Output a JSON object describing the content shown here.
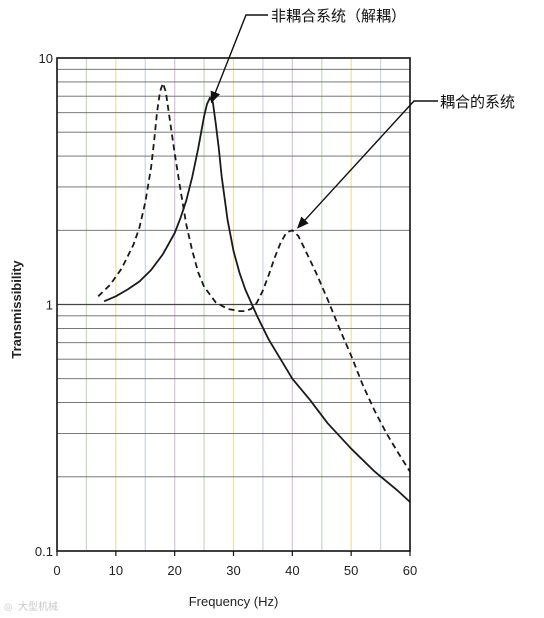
{
  "chart_data": {
    "type": "line",
    "xlabel": "Frequency (Hz)",
    "ylabel": "Transmissibility",
    "xlim": [
      0,
      60
    ],
    "ylim": [
      0.1,
      10
    ],
    "yscale": "log",
    "x_ticks": [
      "0",
      "10",
      "20",
      "30",
      "40",
      "50",
      "60"
    ],
    "y_ticks": [
      {
        "value": 0.1,
        "label": "0.1"
      },
      {
        "value": 1,
        "label": "1"
      },
      {
        "value": 10,
        "label": "10"
      }
    ],
    "grid": true,
    "series": [
      {
        "name": "非耦合系统（解耦）",
        "style": "solid",
        "color": "#1a1a1a",
        "points": [
          [
            8,
            1.03
          ],
          [
            10,
            1.08
          ],
          [
            12,
            1.15
          ],
          [
            14,
            1.24
          ],
          [
            16,
            1.38
          ],
          [
            18,
            1.6
          ],
          [
            20,
            1.95
          ],
          [
            21,
            2.25
          ],
          [
            22,
            2.65
          ],
          [
            23,
            3.3
          ],
          [
            24,
            4.3
          ],
          [
            25,
            5.8
          ],
          [
            25.5,
            6.5
          ],
          [
            26,
            6.9
          ],
          [
            26.5,
            6.6
          ],
          [
            27,
            5.4
          ],
          [
            27.5,
            4.3
          ],
          [
            28,
            3.3
          ],
          [
            29,
            2.2
          ],
          [
            30,
            1.65
          ],
          [
            31,
            1.35
          ],
          [
            32,
            1.15
          ],
          [
            34,
            0.9
          ],
          [
            36,
            0.72
          ],
          [
            38,
            0.6
          ],
          [
            40,
            0.5
          ],
          [
            43,
            0.41
          ],
          [
            46,
            0.33
          ],
          [
            50,
            0.26
          ],
          [
            54,
            0.21
          ],
          [
            58,
            0.175
          ],
          [
            60,
            0.158
          ]
        ]
      },
      {
        "name": "耦合的系统",
        "style": "dashed",
        "color": "#1a1a1a",
        "points": [
          [
            7,
            1.08
          ],
          [
            9,
            1.2
          ],
          [
            11,
            1.4
          ],
          [
            13,
            1.75
          ],
          [
            14,
            2.05
          ],
          [
            15,
            2.6
          ],
          [
            16,
            3.6
          ],
          [
            16.5,
            4.6
          ],
          [
            17,
            6.0
          ],
          [
            17.5,
            7.3
          ],
          [
            18,
            7.9
          ],
          [
            18.5,
            7.3
          ],
          [
            19,
            6.0
          ],
          [
            20,
            4.1
          ],
          [
            21,
            2.9
          ],
          [
            22,
            2.1
          ],
          [
            23,
            1.65
          ],
          [
            24,
            1.35
          ],
          [
            25,
            1.18
          ],
          [
            27,
            1.02
          ],
          [
            29,
            0.96
          ],
          [
            31,
            0.94
          ],
          [
            32,
            0.94
          ],
          [
            33,
            0.96
          ],
          [
            34,
            1.02
          ],
          [
            35,
            1.14
          ],
          [
            36,
            1.32
          ],
          [
            37,
            1.55
          ],
          [
            38,
            1.78
          ],
          [
            39,
            1.96
          ],
          [
            40,
            2.0
          ],
          [
            41,
            1.9
          ],
          [
            42,
            1.7
          ],
          [
            44,
            1.35
          ],
          [
            46,
            1.05
          ],
          [
            48,
            0.8
          ],
          [
            50,
            0.62
          ],
          [
            52,
            0.47
          ],
          [
            54,
            0.37
          ],
          [
            56,
            0.3
          ],
          [
            58,
            0.25
          ],
          [
            60,
            0.21
          ]
        ]
      }
    ],
    "annotations": [
      {
        "text": "非耦合系统（解耦）",
        "points_to": [
          26.3,
          6.9
        ]
      },
      {
        "text": "耦合的系统",
        "points_to": [
          40,
          2.0
        ]
      }
    ]
  },
  "watermark": "大型机械"
}
